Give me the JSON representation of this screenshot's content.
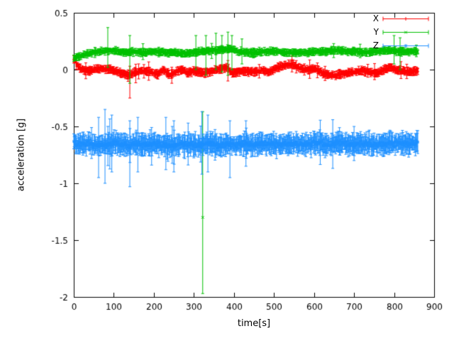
{
  "figure": {
    "background": "#ffffff",
    "axis_color": "#000000"
  },
  "chart_data": {
    "type": "scatter",
    "style": "points-with-errorbars",
    "title": "",
    "xlabel": "time[s]",
    "ylabel": "acceleration [g]",
    "xlim": [
      0,
      900
    ],
    "ylim": [
      -2,
      0.5
    ],
    "xticks": [
      0,
      100,
      200,
      300,
      400,
      500,
      600,
      700,
      800,
      900
    ],
    "xtick_labels": [
      "0",
      "100",
      "200",
      "300",
      "400",
      "500",
      "600",
      "700",
      "800",
      "900"
    ],
    "yticks": [
      0.5,
      0,
      -0.5,
      -1,
      -1.5,
      -2
    ],
    "ytick_labels": [
      "0.5",
      "0",
      "-0.5",
      "-1",
      "-1.5",
      "-2"
    ],
    "grid": false,
    "legend": {
      "position": "top-right",
      "entries": [
        "X",
        "Y",
        "Z"
      ]
    },
    "series": [
      {
        "name": "X",
        "color": "#ff0000",
        "marker": "plus",
        "marker_glyph": "+",
        "t_range": [
          0,
          860
        ],
        "t_step": 1.2,
        "noise": 0.012,
        "err": 0.022,
        "base_points": [
          [
            0,
            0.09
          ],
          [
            8,
            0.05
          ],
          [
            15,
            0.01
          ],
          [
            30,
            -0.01
          ],
          [
            50,
            0.0
          ],
          [
            70,
            0.01
          ],
          [
            90,
            0.0
          ],
          [
            110,
            -0.02
          ],
          [
            135,
            -0.05
          ],
          [
            150,
            -0.03
          ],
          [
            170,
            -0.01
          ],
          [
            190,
            -0.02
          ],
          [
            210,
            -0.04
          ],
          [
            225,
            0.0
          ],
          [
            240,
            -0.05
          ],
          [
            255,
            -0.02
          ],
          [
            270,
            0.0
          ],
          [
            285,
            -0.03
          ],
          [
            300,
            -0.01
          ],
          [
            320,
            -0.03
          ],
          [
            340,
            -0.02
          ],
          [
            355,
            0.0
          ],
          [
            370,
            0.01
          ],
          [
            385,
            0.02
          ],
          [
            395,
            -0.03
          ],
          [
            410,
            -0.02
          ],
          [
            430,
            -0.01
          ],
          [
            450,
            -0.02
          ],
          [
            470,
            -0.01
          ],
          [
            490,
            -0.02
          ],
          [
            510,
            0.02
          ],
          [
            530,
            0.04
          ],
          [
            545,
            0.05
          ],
          [
            560,
            0.02
          ],
          [
            575,
            0.0
          ],
          [
            590,
            0.0
          ],
          [
            605,
            0.01
          ],
          [
            620,
            -0.03
          ],
          [
            635,
            -0.05
          ],
          [
            650,
            -0.05
          ],
          [
            665,
            -0.04
          ],
          [
            680,
            -0.03
          ],
          [
            700,
            -0.02
          ],
          [
            720,
            -0.01
          ],
          [
            740,
            -0.02
          ],
          [
            760,
            -0.03
          ],
          [
            775,
            0.0
          ],
          [
            790,
            0.02
          ],
          [
            805,
            0.0
          ],
          [
            820,
            -0.01
          ],
          [
            840,
            -0.02
          ],
          [
            860,
            -0.01
          ]
        ],
        "big_errorbars": [
          [
            30,
            -0.08,
            0.06
          ],
          [
            140,
            -0.25,
            0.03
          ],
          [
            385,
            -0.1,
            0.08
          ],
          [
            545,
            -0.02,
            0.12
          ]
        ],
        "outliers": []
      },
      {
        "name": "Y",
        "color": "#00c000",
        "marker": "cross",
        "marker_glyph": "×",
        "t_range": [
          0,
          860
        ],
        "t_step": 1.2,
        "noise": 0.012,
        "err": 0.02,
        "base_points": [
          [
            0,
            0.1
          ],
          [
            10,
            0.11
          ],
          [
            25,
            0.13
          ],
          [
            45,
            0.15
          ],
          [
            70,
            0.16
          ],
          [
            90,
            0.17
          ],
          [
            110,
            0.16
          ],
          [
            130,
            0.15
          ],
          [
            150,
            0.16
          ],
          [
            175,
            0.15
          ],
          [
            200,
            0.16
          ],
          [
            225,
            0.15
          ],
          [
            250,
            0.15
          ],
          [
            275,
            0.14
          ],
          [
            300,
            0.15
          ],
          [
            325,
            0.16
          ],
          [
            350,
            0.17
          ],
          [
            375,
            0.18
          ],
          [
            395,
            0.18
          ],
          [
            410,
            0.16
          ],
          [
            430,
            0.15
          ],
          [
            455,
            0.15
          ],
          [
            480,
            0.16
          ],
          [
            505,
            0.16
          ],
          [
            530,
            0.15
          ],
          [
            555,
            0.15
          ],
          [
            580,
            0.15
          ],
          [
            605,
            0.16
          ],
          [
            630,
            0.16
          ],
          [
            655,
            0.17
          ],
          [
            680,
            0.16
          ],
          [
            705,
            0.16
          ],
          [
            730,
            0.15
          ],
          [
            755,
            0.16
          ],
          [
            780,
            0.17
          ],
          [
            805,
            0.16
          ],
          [
            830,
            0.16
          ],
          [
            860,
            0.16
          ]
        ],
        "big_errorbars": [
          [
            85,
            0.02,
            0.37
          ],
          [
            140,
            -0.12,
            0.3
          ],
          [
            305,
            0.0,
            0.3
          ],
          [
            330,
            -0.05,
            0.3
          ],
          [
            355,
            0.0,
            0.32
          ],
          [
            370,
            -0.02,
            0.3
          ],
          [
            385,
            -0.05,
            0.33
          ],
          [
            395,
            0.0,
            0.3
          ],
          [
            420,
            0.05,
            0.27
          ],
          [
            800,
            0.05,
            0.3
          ],
          [
            815,
            0.0,
            0.28
          ]
        ],
        "outliers": [
          [
            322,
            -1.3,
            -1.97,
            -0.37
          ]
        ]
      },
      {
        "name": "Z",
        "color": "#1e90ff",
        "marker": "star",
        "marker_glyph": "∗",
        "t_range": [
          0,
          860
        ],
        "t_step": 1.2,
        "noise": 0.03,
        "err": 0.06,
        "base_points": [
          [
            0,
            -0.64
          ],
          [
            20,
            -0.66
          ],
          [
            40,
            -0.65
          ],
          [
            60,
            -0.67
          ],
          [
            80,
            -0.66
          ],
          [
            100,
            -0.65
          ],
          [
            120,
            -0.66
          ],
          [
            140,
            -0.67
          ],
          [
            160,
            -0.65
          ],
          [
            180,
            -0.66
          ],
          [
            200,
            -0.65
          ],
          [
            220,
            -0.66
          ],
          [
            240,
            -0.67
          ],
          [
            260,
            -0.66
          ],
          [
            280,
            -0.65
          ],
          [
            300,
            -0.66
          ],
          [
            320,
            -0.66
          ],
          [
            340,
            -0.65
          ],
          [
            360,
            -0.67
          ],
          [
            380,
            -0.66
          ],
          [
            400,
            -0.66
          ],
          [
            420,
            -0.65
          ],
          [
            440,
            -0.66
          ],
          [
            460,
            -0.66
          ],
          [
            480,
            -0.65
          ],
          [
            500,
            -0.66
          ],
          [
            520,
            -0.66
          ],
          [
            540,
            -0.65
          ],
          [
            560,
            -0.66
          ],
          [
            580,
            -0.66
          ],
          [
            600,
            -0.65
          ],
          [
            620,
            -0.65
          ],
          [
            640,
            -0.66
          ],
          [
            660,
            -0.65
          ],
          [
            680,
            -0.65
          ],
          [
            700,
            -0.66
          ],
          [
            720,
            -0.65
          ],
          [
            740,
            -0.65
          ],
          [
            760,
            -0.66
          ],
          [
            780,
            -0.65
          ],
          [
            800,
            -0.65
          ],
          [
            820,
            -0.65
          ],
          [
            840,
            -0.65
          ],
          [
            860,
            -0.65
          ]
        ],
        "big_errorbars": [
          [
            62,
            -0.95,
            -0.42
          ],
          [
            78,
            -1.0,
            -0.35
          ],
          [
            95,
            -0.9,
            -0.4
          ],
          [
            140,
            -1.03,
            -0.45
          ],
          [
            160,
            -0.9,
            -0.42
          ],
          [
            230,
            -0.88,
            -0.42
          ],
          [
            250,
            -0.9,
            -0.45
          ],
          [
            320,
            -0.92,
            -0.37
          ],
          [
            335,
            -0.9,
            -0.4
          ],
          [
            390,
            -0.95,
            -0.45
          ],
          [
            430,
            -0.85,
            -0.45
          ],
          [
            700,
            -0.8,
            -0.5
          ]
        ],
        "outliers": []
      }
    ]
  }
}
